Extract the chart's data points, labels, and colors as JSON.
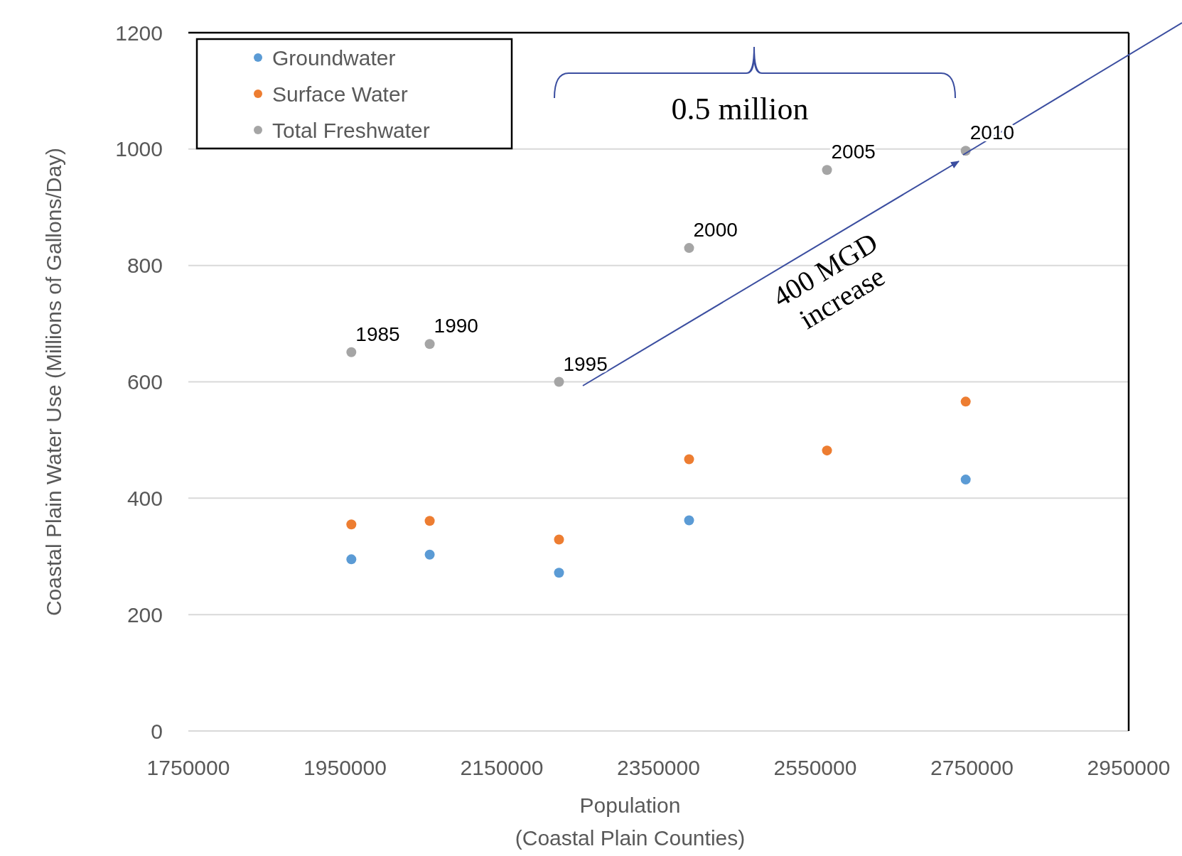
{
  "chart_data": {
    "type": "scatter",
    "xlabel": "Population\n(Coastal Plain Counties)",
    "ylabel": "Coastal Plain Water Use (Millions of Gallons/Day)",
    "x": [
      1958000,
      2058000,
      2223000,
      2389000,
      2565000,
      2742000
    ],
    "series": [
      {
        "name": "Groundwater",
        "color": "#5b9bd5",
        "values": [
          295,
          303,
          272,
          362,
          null,
          432
        ]
      },
      {
        "name": "Surface Water",
        "color": "#ed7d31",
        "values": [
          355,
          361,
          329,
          467,
          482,
          566
        ]
      },
      {
        "name": "Total Freshwater",
        "color": "#a5a5a5",
        "values": [
          651,
          665,
          600,
          830,
          964,
          997
        ]
      }
    ],
    "xlim": [
      1750000,
      2950000
    ],
    "xticks": [
      1750000,
      1950000,
      2150000,
      2350000,
      2550000,
      2750000,
      2950000
    ],
    "ylim": [
      0,
      1200
    ],
    "yticks": [
      0,
      200,
      400,
      600,
      800,
      1000,
      1200
    ],
    "grid": "y",
    "legend": "top left",
    "marker": "circle",
    "annotations": [
      {
        "text": "1985",
        "x": 1958000,
        "y": 651
      },
      {
        "text": "1990",
        "x": 2058000,
        "y": 665
      },
      {
        "text": "1995",
        "x": 2223000,
        "y": 600
      },
      {
        "text": "2000",
        "x": 2389000,
        "y": 830
      },
      {
        "text": "2005",
        "x": 2565000,
        "y": 964
      },
      {
        "text": "2010",
        "x": 2742000,
        "y": 997
      },
      "0.5 million",
      "400 MGD increase"
    ]
  }
}
